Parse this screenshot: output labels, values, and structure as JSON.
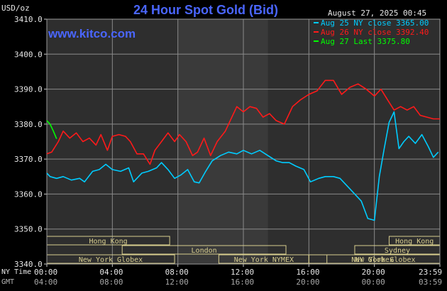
{
  "header": {
    "title": "24 Hour Spot Gold (Bid)",
    "website": "www.kitco.com",
    "y_unit": "USD/oz",
    "datetime": "August 27, 2025 00:45"
  },
  "legend": [
    {
      "text": "Aug 25 NY close 3365.00",
      "color": "#00ccff"
    },
    {
      "text": "Aug 26 NY close 3392.40",
      "color": "#ff1a1a"
    },
    {
      "text": "Aug 27 Last 3375.80",
      "color": "#00ff00"
    }
  ],
  "axis_labels": {
    "ny_time": "NY Time",
    "gmt": "GMT"
  },
  "colors": {
    "background": "#000000",
    "plot_bg": "#2e2e2e",
    "shade_bg": "#3a3a3a",
    "grid": "#8a8a8a",
    "session": "#d8ce8e",
    "title": "#4a66ff"
  },
  "sessions": [
    {
      "name": "Hong Kong",
      "start": 0,
      "end": 7.5,
      "row": 1
    },
    {
      "name": "London",
      "start": 4.6,
      "end": 14.6,
      "row": 2
    },
    {
      "name": "New York Globex",
      "start": 0,
      "end": 7.8,
      "row": 3
    },
    {
      "name": "New York NYMEX",
      "start": 10.5,
      "end": 16,
      "row": 3
    },
    {
      "name": "NY Globex",
      "start": 16,
      "end": 24,
      "row": 3
    },
    {
      "name": "Hong Kong",
      "start": 20.9,
      "end": 29,
      "row": 1
    },
    {
      "name": "Sydney",
      "start": 18.8,
      "end": 27,
      "row": 2
    },
    {
      "name": "New York Globex",
      "start": 17.1,
      "end": 25,
      "row": 3
    }
  ],
  "chart_data": {
    "type": "line",
    "ylim": [
      3340,
      3410
    ],
    "yticks": [
      3340,
      3350,
      3360,
      3370,
      3380,
      3390,
      3400,
      3410
    ],
    "ytick_labels": [
      "3340.0",
      "3350.0",
      "3360.0",
      "3370.0",
      "3380.0",
      "3390.0",
      "3400.0",
      "3410.0"
    ],
    "xlim": [
      0,
      24
    ],
    "xticks": [
      0,
      4,
      8,
      12,
      16,
      20,
      24
    ],
    "ny_tick_labels": [
      "00:00",
      "04:00",
      "08:00",
      "12:00",
      "16:00",
      "20:00",
      "23:59"
    ],
    "gmt_tick_labels": [
      "04:00",
      "08:00",
      "12:00",
      "16:00",
      "20:00",
      "00:00",
      "03:59"
    ],
    "shaded_region": [
      8,
      13.5
    ],
    "series": [
      {
        "name": "Aug 25 NY close 3365.00",
        "color": "#00ccff",
        "x": [
          0,
          0.2,
          0.6,
          1.0,
          1.5,
          2.0,
          2.3,
          2.8,
          3.2,
          3.6,
          4.0,
          4.5,
          5.0,
          5.3,
          5.8,
          6.2,
          6.7,
          7.0,
          7.4,
          7.8,
          8.2,
          8.6,
          9.0,
          9.3,
          9.7,
          10.1,
          10.6,
          11.1,
          11.6,
          12.0,
          12.5,
          13.0,
          13.5,
          14.0,
          14.4,
          14.8,
          15.2,
          15.7,
          16.1,
          16.6,
          17.0,
          17.5,
          17.9,
          18.3,
          18.8,
          19.2,
          19.6,
          20.0,
          20.3,
          20.6,
          20.9,
          21.2,
          21.5,
          21.8,
          22.1,
          22.5,
          22.9,
          23.3,
          23.6,
          23.9
        ],
        "values": [
          3366,
          3365,
          3364.5,
          3365,
          3364,
          3364.5,
          3363.5,
          3366.5,
          3367,
          3368.5,
          3367,
          3366.5,
          3367.5,
          3363.5,
          3366,
          3366.5,
          3367.5,
          3369,
          3367,
          3364.5,
          3365.5,
          3367,
          3363.5,
          3363.2,
          3366.5,
          3369.5,
          3371,
          3372,
          3371.5,
          3372.5,
          3371.5,
          3372.5,
          3371,
          3369.5,
          3369,
          3369,
          3368,
          3367,
          3363.5,
          3364.5,
          3365,
          3365,
          3364.5,
          3362.5,
          3360,
          3358,
          3353,
          3352.5,
          3365,
          3373,
          3380.5,
          3383.5,
          3373,
          3375,
          3376.5,
          3374.5,
          3377,
          3373.5,
          3370.5,
          3372
        ]
      },
      {
        "name": "Aug 26 NY close 3392.40",
        "color": "#ff1a1a",
        "x": [
          0,
          0.3,
          0.7,
          1.0,
          1.4,
          1.8,
          2.2,
          2.6,
          3.0,
          3.3,
          3.7,
          4.0,
          4.4,
          4.8,
          5.1,
          5.5,
          5.9,
          6.3,
          6.6,
          7.0,
          7.4,
          7.8,
          8.1,
          8.5,
          8.9,
          9.2,
          9.6,
          10.0,
          10.4,
          10.9,
          11.2,
          11.6,
          12.0,
          12.4,
          12.8,
          13.2,
          13.6,
          14.0,
          14.5,
          15.0,
          15.5,
          16.0,
          16.5,
          17.0,
          17.5,
          18.0,
          18.5,
          19.0,
          19.5,
          20.0,
          20.4,
          20.8,
          21.2,
          21.6,
          22.0,
          22.4,
          22.8,
          23.2,
          23.6,
          24.0
        ],
        "values": [
          3371.5,
          3372,
          3375,
          3378,
          3376,
          3377.5,
          3375,
          3376,
          3374,
          3377,
          3372.5,
          3376.5,
          3377,
          3376.5,
          3375,
          3371.5,
          3371.5,
          3368.5,
          3372.5,
          3375,
          3377.5,
          3375,
          3377,
          3375,
          3371,
          3372,
          3376,
          3371,
          3375,
          3378,
          3381,
          3385,
          3383.5,
          3385,
          3384.5,
          3382,
          3383,
          3381,
          3380,
          3385,
          3387,
          3388.5,
          3389.5,
          3392.5,
          3392.5,
          3388.5,
          3390.5,
          3391.5,
          3390,
          3388,
          3390,
          3387,
          3384,
          3385,
          3384,
          3385,
          3382.5,
          3382,
          3381.5,
          3381.5
        ]
      },
      {
        "name": "Aug 27 Last 3375.80",
        "color": "#00ff00",
        "x": [
          0,
          0.2,
          0.4,
          0.6
        ],
        "values": [
          3381,
          3380,
          3378,
          3375.8
        ]
      }
    ]
  }
}
